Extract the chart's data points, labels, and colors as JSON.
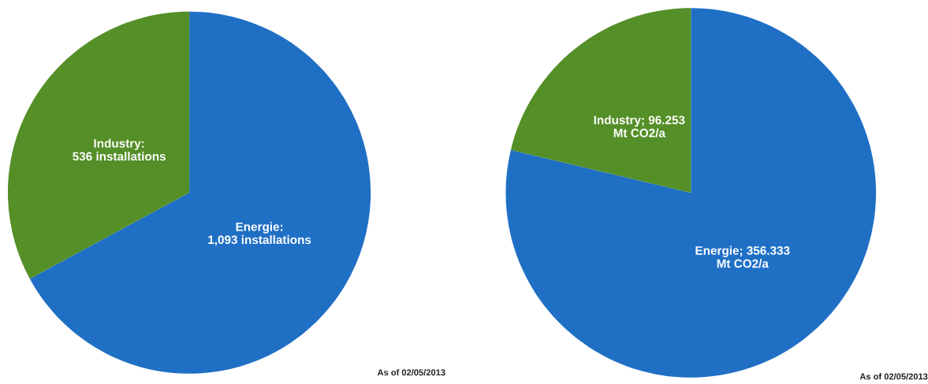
{
  "chart_data": [
    {
      "type": "pie",
      "categories": [
        "Energie:\n1,093 installations",
        "Industry:\n536 installations"
      ],
      "values": [
        1093,
        536
      ],
      "colors": [
        "#1f6fc5",
        "#548f27"
      ],
      "annotations": [
        "As of 02/05/2013"
      ]
    },
    {
      "type": "pie",
      "categories": [
        "Energie; 356.333\nMt CO2/a",
        "Industry; 96.253\nMt CO2/a"
      ],
      "values": [
        356.333,
        96.253
      ],
      "colors": [
        "#1f6fc5",
        "#548f27"
      ],
      "annotations": [
        "As of 02/05/2013"
      ]
    }
  ]
}
